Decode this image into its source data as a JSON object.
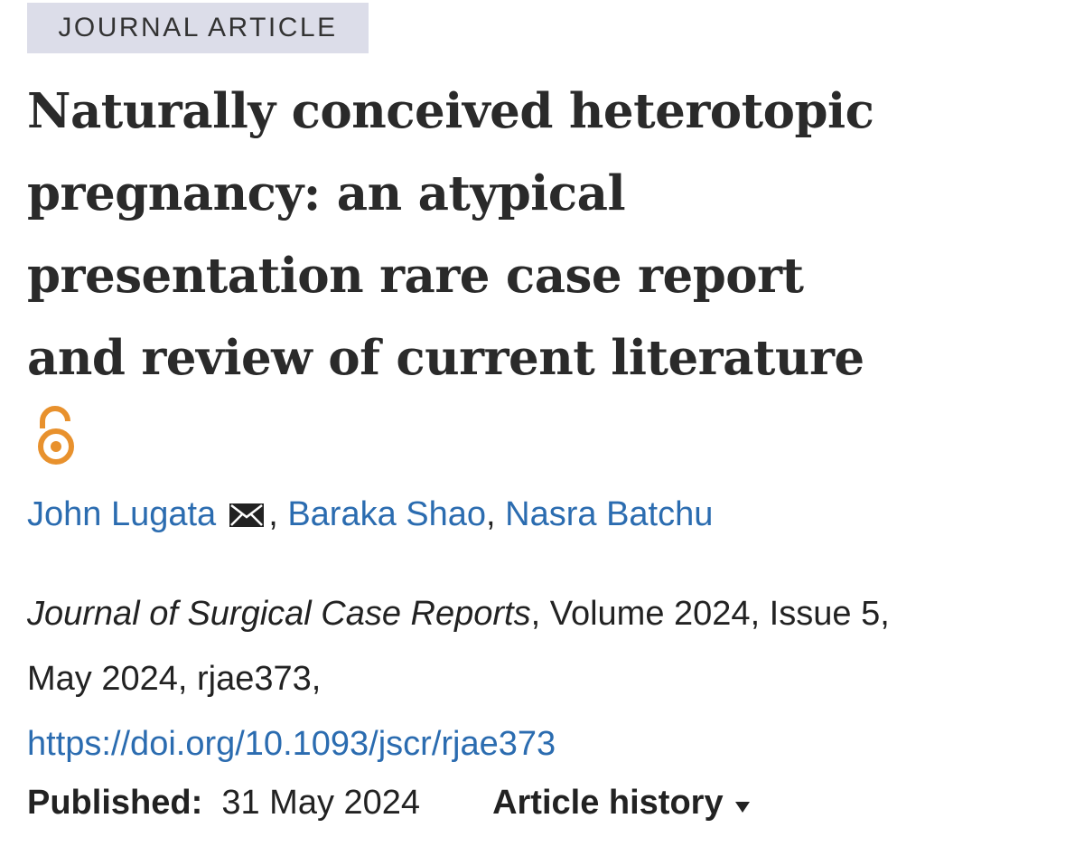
{
  "badge": "JOURNAL ARTICLE",
  "title_lines": [
    "Naturally conceived heterotopic",
    "pregnancy: an atypical",
    "presentation rare case report",
    "and review of current literature"
  ],
  "authors": [
    "John Lugata",
    "Baraka Shao",
    "Nasra Batchu"
  ],
  "author_separator": ",",
  "citation": {
    "journal": "Journal of Surgical Case Reports",
    "details": ", Volume 2024, Issue 5,",
    "details_2": "May 2024, rjae373,",
    "doi": "https://doi.org/10.1093/jscr/rjae373"
  },
  "published": {
    "label": "Published:",
    "date": "31 May 2024",
    "history": "Article history"
  }
}
